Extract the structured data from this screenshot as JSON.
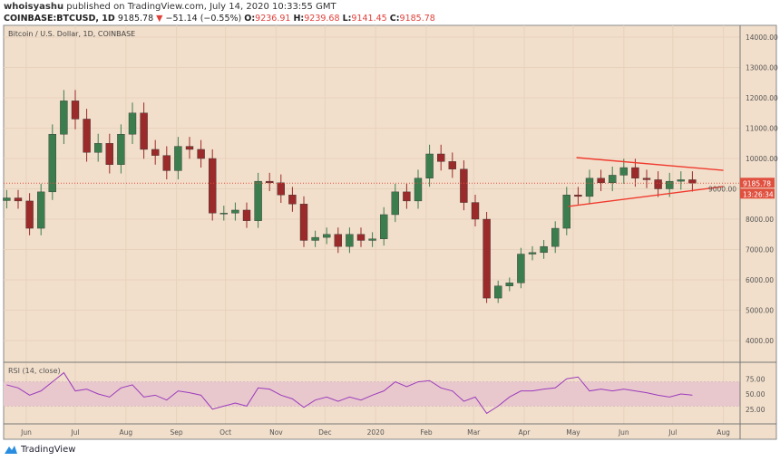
{
  "header": {
    "author": "whoisyashu",
    "published": "published on TradingView.com, July 14, 2020 10:33:55 GMT",
    "symbol": "COINBASE:BTCUSD, 1D",
    "last": "9185.78",
    "change": "−51.14 (−0.55%)",
    "o_label": "O:",
    "o": "9236.91",
    "h_label": "H:",
    "h": "9239.68",
    "l_label": "L:",
    "l": "9141.45",
    "c_label": "C:",
    "c": "9185.78"
  },
  "pane_title": "Bitcoin / U.S. Dollar, 1D, COINBASE",
  "rsi_title": "RSI (14, close)",
  "price_label": "9185.78",
  "countdown": "13:26:34",
  "logo_text": "TradingView",
  "colors": {
    "up": "#3c7d4e",
    "down": "#9b2a2a",
    "background": "#f2dfcb",
    "rsi_line": "#9c3bbd",
    "rsi_band": "#e8c8cc",
    "trendline": "#f03a2e",
    "price_label": "#e0503f"
  },
  "chart_data": [
    {
      "type": "candlestick",
      "title": "Bitcoin / U.S. Dollar, 1D, COINBASE",
      "ylim": [
        3500,
        14500
      ],
      "yticks": [
        4000,
        5000,
        6000,
        7000,
        8000,
        9000,
        10000,
        11000,
        12000,
        13000,
        14000
      ],
      "ytick_labels": [
        "4000.00",
        "5000.00",
        "6000.00",
        "7000.00",
        "8000.00",
        "9000.00",
        "10000.00",
        "11000.00",
        "12000.00",
        "13000.00",
        "14000.00"
      ],
      "x_start": "2019-05-20",
      "x_step_days": 7,
      "close": [
        8700,
        8600,
        7700,
        8900,
        10800,
        11900,
        11300,
        10200,
        10500,
        9800,
        10800,
        11500,
        10300,
        10100,
        9600,
        10400,
        10300,
        10000,
        8200,
        8200,
        8300,
        7950,
        9250,
        9200,
        8800,
        8500,
        7300,
        7400,
        7500,
        7100,
        7500,
        7300,
        7350,
        8150,
        8900,
        8600,
        9350,
        10150,
        9900,
        9650,
        8550,
        8000,
        5400,
        5800,
        5900,
        6850,
        6900,
        7100,
        7700,
        8800,
        8750,
        9350,
        9200,
        9450,
        9700,
        9350,
        9300,
        9000,
        9250,
        9300,
        9185.78
      ],
      "trendlines": [
        {
          "from": [
            "2020-05-03",
            10030
          ],
          "to": [
            "2020-08-01",
            9610
          ]
        },
        {
          "from": [
            "2020-04-28",
            8420
          ],
          "to": [
            "2020-08-01",
            9075
          ]
        }
      ],
      "x_ticks": [
        [
          "2019-06-01",
          "Jun"
        ],
        [
          "2019-07-01",
          "Jul"
        ],
        [
          "2019-08-01",
          "Aug"
        ],
        [
          "2019-09-01",
          "Sep"
        ],
        [
          "2019-10-01",
          "Oct"
        ],
        [
          "2019-11-01",
          "Nov"
        ],
        [
          "2019-12-01",
          "Dec"
        ],
        [
          "2020-01-01",
          "2020"
        ],
        [
          "2020-02-01",
          "Feb"
        ],
        [
          "2020-03-01",
          "Mar"
        ],
        [
          "2020-04-01",
          "Apr"
        ],
        [
          "2020-05-01",
          "May"
        ],
        [
          "2020-06-01",
          "Jun"
        ],
        [
          "2020-07-01",
          "Jul"
        ],
        [
          "2020-08-01",
          "Aug"
        ]
      ]
    },
    {
      "type": "line",
      "title": "RSI (14, close)",
      "ylim": [
        10,
        90
      ],
      "band": [
        30,
        70
      ],
      "yticks": [
        25,
        50,
        75
      ],
      "ytick_labels": [
        "25.00",
        "50.00",
        "75.00"
      ],
      "x_start": "2019-05-20",
      "x_step_days": 7,
      "values": [
        65,
        60,
        48,
        55,
        70,
        85,
        55,
        58,
        50,
        45,
        60,
        65,
        45,
        48,
        40,
        55,
        52,
        48,
        25,
        30,
        35,
        30,
        60,
        58,
        48,
        42,
        28,
        40,
        45,
        38,
        45,
        40,
        48,
        55,
        70,
        62,
        70,
        72,
        60,
        55,
        38,
        45,
        18,
        30,
        45,
        55,
        55,
        58,
        60,
        75,
        78,
        55,
        58,
        55,
        58,
        55,
        52,
        48,
        45,
        50,
        48
      ]
    }
  ]
}
